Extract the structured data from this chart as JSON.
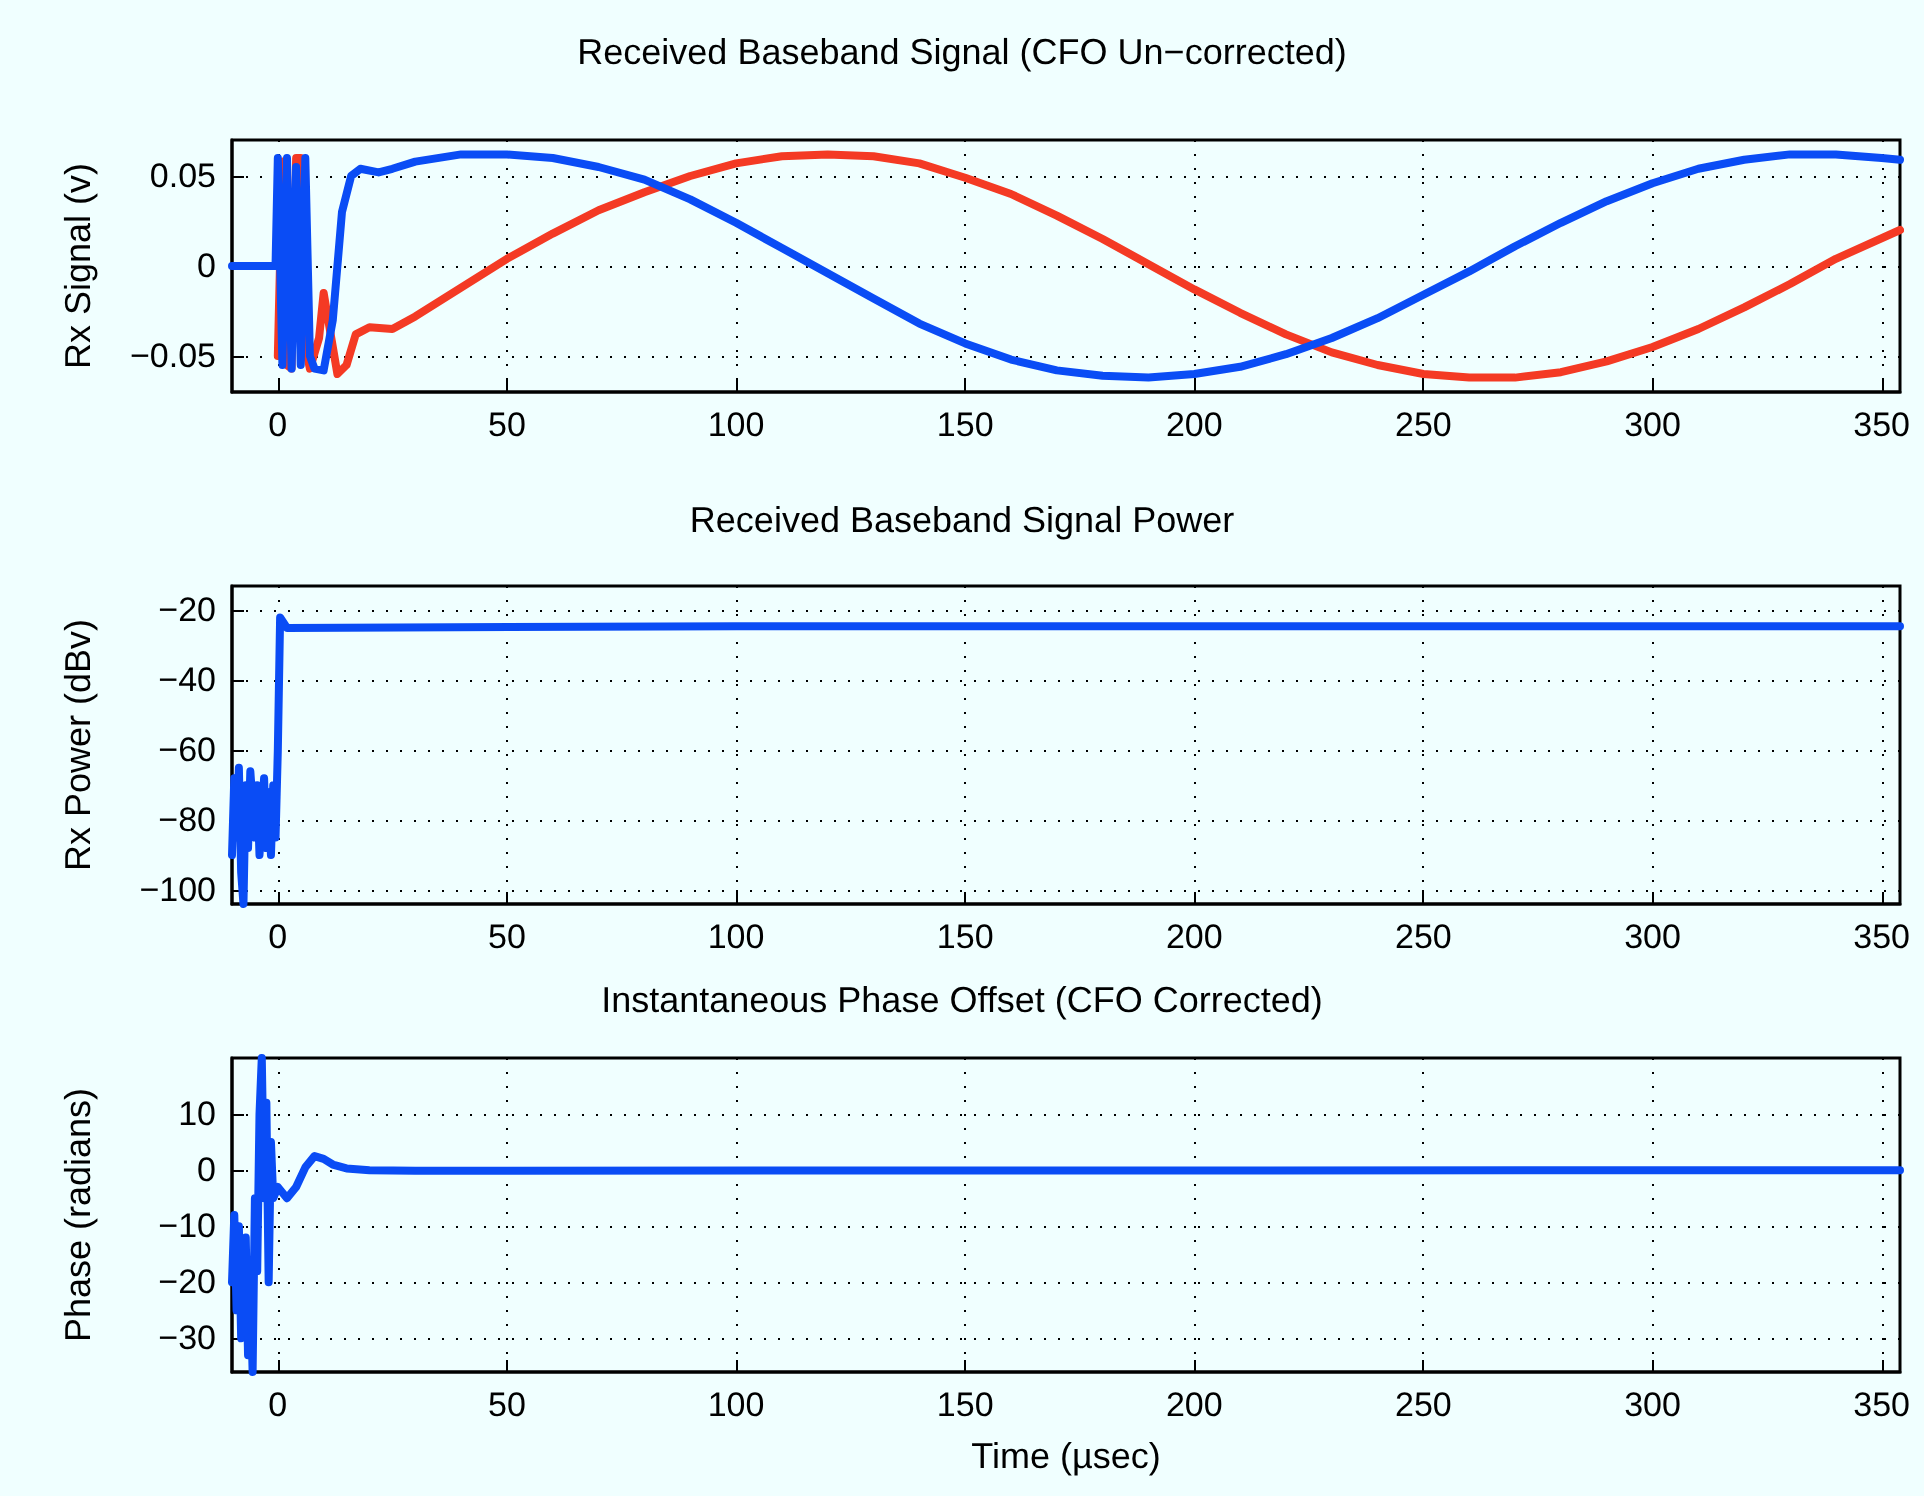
{
  "chart_data": [
    {
      "type": "line",
      "title": "Received Baseband Signal (CFO Un−corrected)",
      "ylabel": "Rx Signal (v)",
      "xlim": [
        -10,
        354
      ],
      "xticks": [
        0,
        50,
        100,
        150,
        200,
        250,
        300,
        350
      ],
      "ylim": [
        -0.07,
        0.07
      ],
      "yticks": [
        -0.05,
        0,
        0.05
      ],
      "grid": true,
      "line_style": "solid",
      "series": [
        {
          "color": "#f43a24",
          "x": [
            0,
            1,
            2,
            3,
            4,
            5,
            6,
            7,
            9,
            10,
            11,
            13,
            15,
            17,
            20,
            25,
            30,
            40,
            50,
            60,
            70,
            80,
            90,
            100,
            110,
            120,
            130,
            140,
            150,
            160,
            170,
            180,
            190,
            200,
            210,
            220,
            230,
            240,
            250,
            260,
            270,
            280,
            290,
            300,
            310,
            320,
            330,
            340,
            354
          ],
          "values": [
            -0.05,
            0.058,
            -0.055,
            -0.057,
            0.06,
            0.06,
            -0.045,
            -0.057,
            -0.04,
            -0.015,
            -0.03,
            -0.06,
            -0.055,
            -0.038,
            -0.034,
            -0.035,
            -0.028,
            -0.012,
            0.004,
            0.018,
            0.031,
            0.041,
            0.05,
            0.057,
            0.061,
            0.062,
            0.061,
            0.057,
            0.049,
            0.04,
            0.028,
            0.015,
            0.001,
            -0.013,
            -0.026,
            -0.038,
            -0.048,
            -0.055,
            -0.06,
            -0.062,
            -0.062,
            -0.059,
            -0.053,
            -0.045,
            -0.035,
            -0.023,
            -0.01,
            0.004,
            0.02
          ]
        },
        {
          "color": "#0a4cf5",
          "x": [
            -10,
            -0.5,
            0,
            1,
            2,
            3,
            4,
            5,
            6,
            7,
            8,
            10,
            12,
            14,
            16,
            18,
            22,
            25,
            30,
            40,
            50,
            60,
            70,
            80,
            90,
            100,
            110,
            120,
            130,
            140,
            150,
            160,
            170,
            180,
            190,
            200,
            210,
            220,
            230,
            240,
            250,
            260,
            270,
            280,
            290,
            300,
            310,
            320,
            330,
            340,
            350,
            354
          ],
          "values": [
            0,
            0,
            0.06,
            -0.055,
            0.06,
            -0.057,
            0.055,
            -0.055,
            0.06,
            -0.05,
            -0.057,
            -0.058,
            -0.03,
            0.03,
            0.05,
            0.054,
            0.052,
            0.054,
            0.058,
            0.062,
            0.062,
            0.06,
            0.055,
            0.048,
            0.037,
            0.024,
            0.01,
            -0.004,
            -0.018,
            -0.032,
            -0.043,
            -0.052,
            -0.058,
            -0.061,
            -0.062,
            -0.06,
            -0.056,
            -0.049,
            -0.04,
            -0.029,
            -0.016,
            -0.003,
            0.011,
            0.024,
            0.036,
            0.046,
            0.054,
            0.059,
            0.062,
            0.062,
            0.06,
            0.059
          ]
        }
      ]
    },
    {
      "type": "line",
      "title": "Received Baseband Signal Power",
      "ylabel": "Rx Power (dBv)",
      "xlim": [
        -10,
        354
      ],
      "xticks": [
        0,
        50,
        100,
        150,
        200,
        250,
        300,
        350
      ],
      "ylim": [
        -104,
        -13
      ],
      "yticks": [
        -100,
        -80,
        -60,
        -40,
        -20
      ],
      "grid": true,
      "line_style": "solid",
      "series": [
        {
          "color": "#0a4cf5",
          "x": [
            -10,
            -9.5,
            -9,
            -8.5,
            -8,
            -7.5,
            -7,
            -6.5,
            -6,
            -5,
            -4.5,
            -4,
            -3,
            -2.5,
            -2,
            -1.5,
            -1,
            -0.5,
            0,
            0.5,
            2,
            100,
            200,
            300,
            354
          ],
          "values": [
            -90,
            -68,
            -85,
            -65,
            -95,
            -104,
            -70,
            -88,
            -66,
            -85,
            -70,
            -90,
            -68,
            -88,
            -72,
            -90,
            -70,
            -85,
            -60,
            -22,
            -25,
            -24.5,
            -24.5,
            -24.5,
            -24.5
          ]
        }
      ]
    },
    {
      "type": "line",
      "title": "Instantaneous Phase Offset (CFO Corrected)",
      "xlabel": "Time (µsec)",
      "ylabel": "Phase (radians)",
      "xlim": [
        -10,
        354
      ],
      "xticks": [
        0,
        50,
        100,
        150,
        200,
        250,
        300,
        350
      ],
      "ylim": [
        -36,
        20
      ],
      "yticks": [
        -30,
        -20,
        -10,
        0,
        10
      ],
      "grid": true,
      "line_style": "solid",
      "series": [
        {
          "color": "#0a4cf5",
          "x": [
            -10,
            -9.5,
            -9,
            -8.5,
            -8,
            -7,
            -6.5,
            -6,
            -5.5,
            -5,
            -4.5,
            -4,
            -3.5,
            -3,
            -2.5,
            -2,
            -1.5,
            -1,
            0,
            2,
            4,
            6,
            8,
            10,
            12,
            15,
            20,
            30,
            354
          ],
          "values": [
            -20,
            -8,
            -25,
            -10,
            -30,
            -12,
            -33,
            -20,
            -36,
            -5,
            -18,
            10,
            20,
            -5,
            12,
            -20,
            5,
            -5,
            -3,
            -5,
            -3,
            0.5,
            2.5,
            2,
            1,
            0.3,
            0,
            -0.1,
            0
          ]
        }
      ]
    }
  ]
}
